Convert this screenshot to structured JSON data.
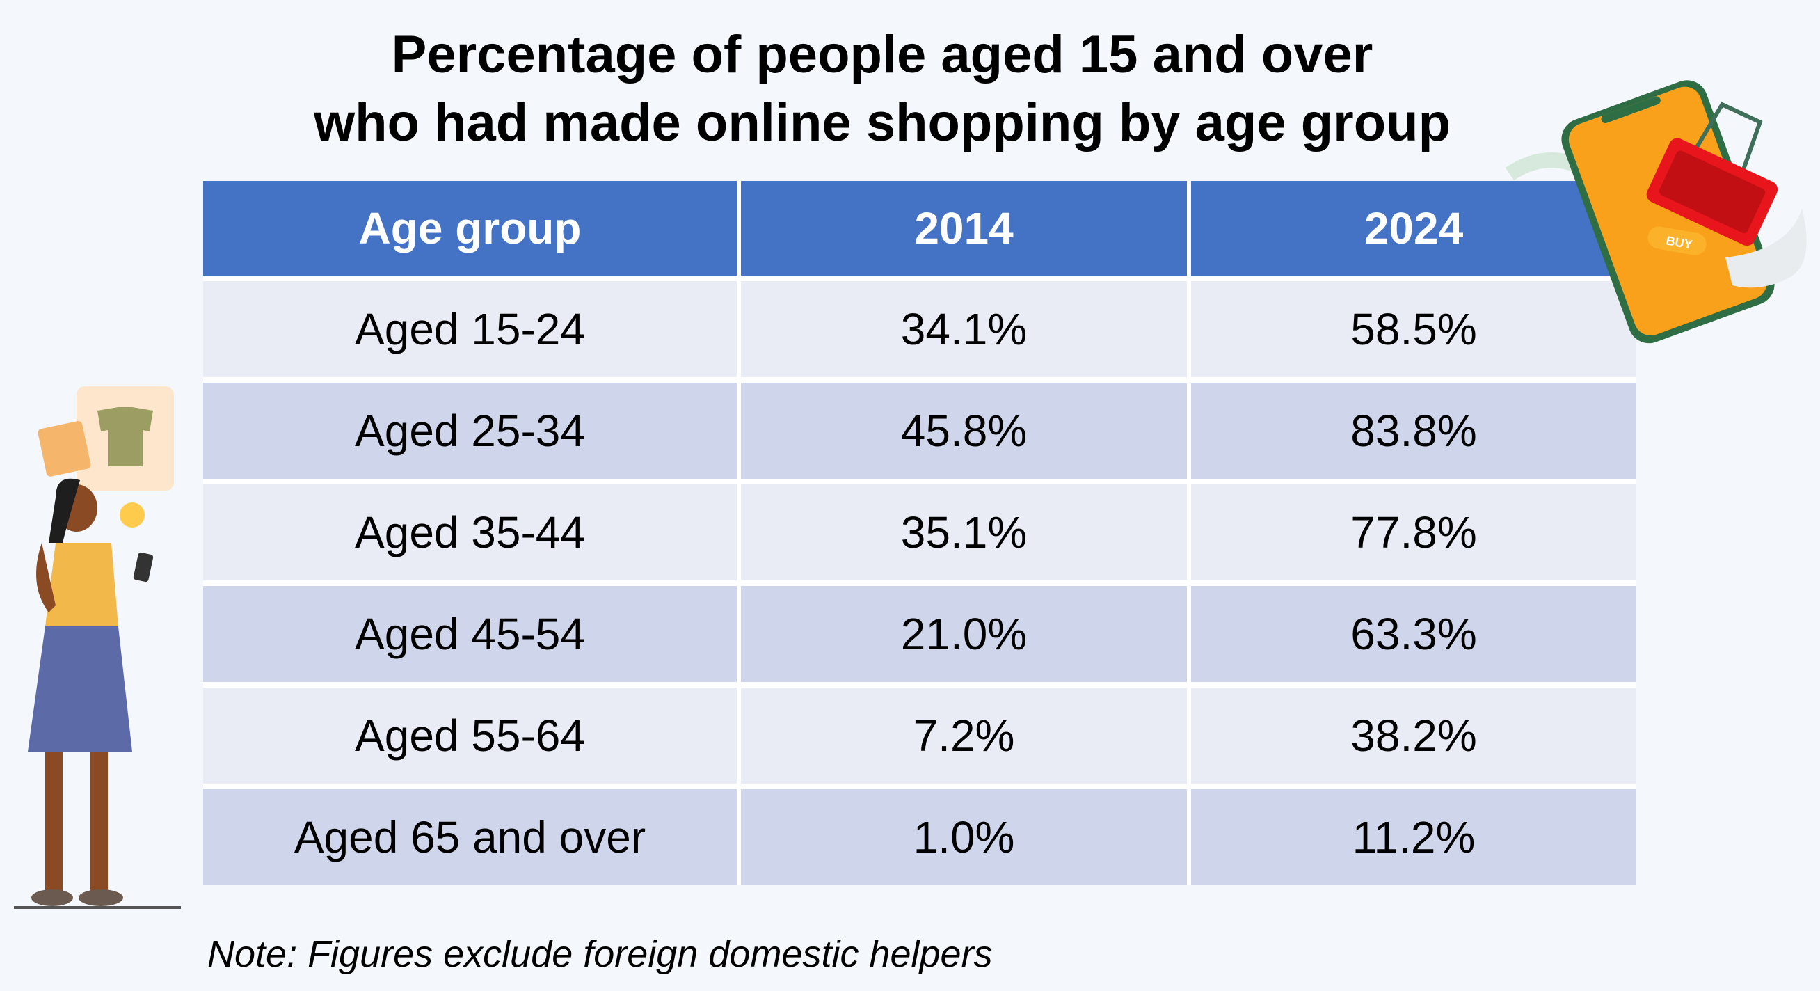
{
  "title": {
    "line1": "Percentage of people aged 15 and over",
    "line2": "who had made online shopping by age group"
  },
  "table": {
    "headers": [
      "Age group",
      "2014",
      "2024"
    ],
    "rows": [
      [
        "Aged 15-24",
        "34.1%",
        "58.5%"
      ],
      [
        "Aged 25-34",
        "45.8%",
        "83.8%"
      ],
      [
        "Aged 35-44",
        "35.1%",
        "77.8%"
      ],
      [
        "Aged 45-54",
        "21.0%",
        "63.3%"
      ],
      [
        "Aged 55-64",
        "7.2%",
        "38.2%"
      ],
      [
        "Aged 65 and over",
        "1.0%",
        "11.2%"
      ]
    ]
  },
  "note": "Note: Figures exclude foreign domestic helpers",
  "illustration": {
    "buy_label": "BUY"
  },
  "colors": {
    "header": "#4472C4",
    "row_light": "#E9EBF5",
    "row_dark": "#CFD5EA",
    "background": "#F4F7FB"
  }
}
